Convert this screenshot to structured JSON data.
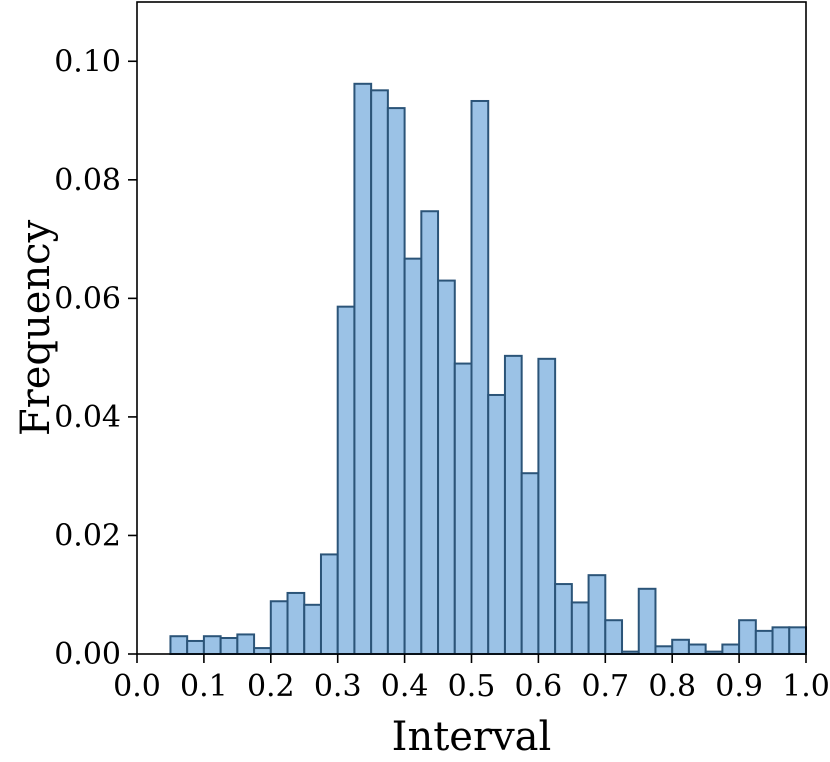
{
  "chart_data": {
    "type": "bar",
    "title": "",
    "xlabel": "Interval",
    "ylabel": "Frequency",
    "xlim": [
      0.0,
      1.0
    ],
    "ylim": [
      0.0,
      0.11
    ],
    "bin_width": 0.025,
    "x_ticks": [
      0.0,
      0.1,
      0.2,
      0.3,
      0.4,
      0.5,
      0.6,
      0.7,
      0.8,
      0.9,
      1.0
    ],
    "x_tick_labels": [
      "0.0",
      "0.1",
      "0.2",
      "0.3",
      "0.4",
      "0.5",
      "0.6",
      "0.7",
      "0.8",
      "0.9",
      "1.0"
    ],
    "y_ticks": [
      0.0,
      0.02,
      0.04,
      0.06,
      0.08,
      0.1
    ],
    "y_tick_labels": [
      "0.00",
      "0.02",
      "0.04",
      "0.06",
      "0.08",
      "0.10"
    ],
    "grid": false,
    "bar_color": "#9bc2e6",
    "edge_color": "#2b5478",
    "bins": [
      {
        "start": 0.05,
        "value": 0.003
      },
      {
        "start": 0.075,
        "value": 0.0022
      },
      {
        "start": 0.1,
        "value": 0.003
      },
      {
        "start": 0.125,
        "value": 0.0027
      },
      {
        "start": 0.15,
        "value": 0.0033
      },
      {
        "start": 0.175,
        "value": 0.001
      },
      {
        "start": 0.2,
        "value": 0.0089
      },
      {
        "start": 0.225,
        "value": 0.0103
      },
      {
        "start": 0.25,
        "value": 0.0083
      },
      {
        "start": 0.275,
        "value": 0.0168
      },
      {
        "start": 0.3,
        "value": 0.0586
      },
      {
        "start": 0.325,
        "value": 0.0962
      },
      {
        "start": 0.35,
        "value": 0.0951
      },
      {
        "start": 0.375,
        "value": 0.0921
      },
      {
        "start": 0.4,
        "value": 0.0667
      },
      {
        "start": 0.425,
        "value": 0.0747
      },
      {
        "start": 0.45,
        "value": 0.063
      },
      {
        "start": 0.475,
        "value": 0.049
      },
      {
        "start": 0.5,
        "value": 0.0933
      },
      {
        "start": 0.525,
        "value": 0.0437
      },
      {
        "start": 0.55,
        "value": 0.0503
      },
      {
        "start": 0.575,
        "value": 0.0305
      },
      {
        "start": 0.6,
        "value": 0.0498
      },
      {
        "start": 0.625,
        "value": 0.0118
      },
      {
        "start": 0.65,
        "value": 0.0087
      },
      {
        "start": 0.675,
        "value": 0.0133
      },
      {
        "start": 0.7,
        "value": 0.0057
      },
      {
        "start": 0.725,
        "value": 0.0004
      },
      {
        "start": 0.75,
        "value": 0.011
      },
      {
        "start": 0.775,
        "value": 0.0013
      },
      {
        "start": 0.8,
        "value": 0.0024
      },
      {
        "start": 0.825,
        "value": 0.0016
      },
      {
        "start": 0.85,
        "value": 0.0004
      },
      {
        "start": 0.875,
        "value": 0.0016
      },
      {
        "start": 0.9,
        "value": 0.0057
      },
      {
        "start": 0.925,
        "value": 0.0039
      },
      {
        "start": 0.95,
        "value": 0.0045
      },
      {
        "start": 0.975,
        "value": 0.0045
      }
    ]
  }
}
